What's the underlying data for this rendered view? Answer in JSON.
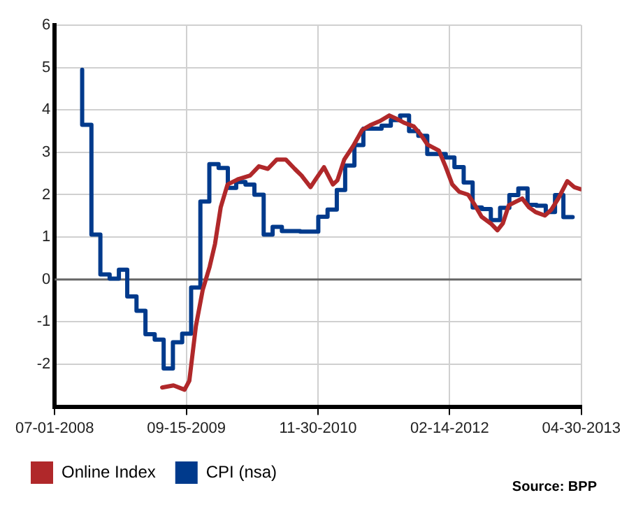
{
  "chart_data": {
    "type": "line",
    "xlim": [
      "2008-07-01",
      "2013-04-30"
    ],
    "xticks": [
      {
        "value": "2008-07-01",
        "label": "07-01-2008"
      },
      {
        "value": "2009-09-15",
        "label": "09-15-2009"
      },
      {
        "value": "2010-11-30",
        "label": "11-30-2010"
      },
      {
        "value": "2012-02-14",
        "label": "02-14-2012"
      },
      {
        "value": "2013-04-30",
        "label": "04-30-2013"
      }
    ],
    "ylim": [
      -3,
      6
    ],
    "yticks": [
      -2,
      -1,
      0,
      1,
      2,
      3,
      4,
      5,
      6
    ],
    "grid": true,
    "legend": "bottom",
    "marker": "none",
    "line_style": "solid",
    "ref_lines": [
      {
        "axis": "y",
        "value": 0,
        "color": "#666666"
      }
    ],
    "annotations": [
      "Source: BPP"
    ],
    "series": [
      {
        "name": "Online Index",
        "color": "#b0282a",
        "x": [
          "2009-06-26",
          "2009-08-03",
          "2009-09-09",
          "2009-09-25",
          "2009-10-17",
          "2009-11-09",
          "2009-12-02",
          "2009-12-20",
          "2010-01-08",
          "2010-01-31",
          "2010-03-09",
          "2010-04-16",
          "2010-05-16",
          "2010-06-15",
          "2010-07-15",
          "2010-08-14",
          "2010-09-13",
          "2010-10-06",
          "2010-11-05",
          "2010-11-20",
          "2010-12-20",
          "2011-01-19",
          "2011-02-03",
          "2011-02-26",
          "2011-03-28",
          "2011-04-27",
          "2011-05-27",
          "2011-06-26",
          "2011-07-27",
          "2011-08-18",
          "2011-09-17",
          "2011-10-17",
          "2011-11-09",
          "2011-12-02",
          "2012-01-09",
          "2012-01-31",
          "2012-02-23",
          "2012-03-17",
          "2012-04-16",
          "2012-05-09",
          "2012-05-31",
          "2012-07-01",
          "2012-07-23",
          "2012-08-10",
          "2012-08-30",
          "2012-09-21",
          "2012-10-14",
          "2012-11-06",
          "2012-11-28",
          "2012-12-29",
          "2013-01-20",
          "2013-02-12",
          "2013-03-14",
          "2013-04-06",
          "2013-04-28"
        ],
        "values": [
          -2.55,
          -2.5,
          -2.6,
          -2.39,
          -1.1,
          -0.24,
          0.3,
          0.84,
          1.7,
          2.24,
          2.37,
          2.45,
          2.67,
          2.61,
          2.83,
          2.83,
          2.61,
          2.45,
          2.18,
          2.34,
          2.65,
          2.24,
          2.34,
          2.83,
          3.15,
          3.53,
          3.65,
          3.74,
          3.87,
          3.8,
          3.69,
          3.61,
          3.42,
          3.18,
          3.04,
          2.67,
          2.24,
          2.07,
          2.0,
          1.75,
          1.48,
          1.32,
          1.16,
          1.32,
          1.75,
          1.83,
          1.91,
          1.7,
          1.59,
          1.51,
          1.65,
          1.91,
          2.32,
          2.18,
          2.13
        ]
      },
      {
        "name": "CPI (nsa)",
        "color": "#003a8c",
        "type": "step",
        "x": [
          "2008-10-01",
          "2008-11-01",
          "2008-12-01",
          "2009-01-01",
          "2009-02-01",
          "2009-03-01",
          "2009-04-01",
          "2009-05-01",
          "2009-06-01",
          "2009-07-01",
          "2009-08-01",
          "2009-09-01",
          "2009-10-01",
          "2009-11-01",
          "2009-12-01",
          "2010-01-01",
          "2010-02-01",
          "2010-03-01",
          "2010-04-01",
          "2010-05-01",
          "2010-06-01",
          "2010-07-01",
          "2010-08-01",
          "2010-09-01",
          "2010-10-01",
          "2010-11-01",
          "2010-12-01",
          "2011-01-01",
          "2011-02-01",
          "2011-03-01",
          "2011-04-01",
          "2011-05-01",
          "2011-06-01",
          "2011-07-01",
          "2011-08-01",
          "2011-09-01",
          "2011-10-01",
          "2011-11-01",
          "2011-12-01",
          "2012-01-01",
          "2012-02-01",
          "2012-03-01",
          "2012-04-01",
          "2012-05-01",
          "2012-06-01",
          "2012-07-01",
          "2012-08-01",
          "2012-09-01",
          "2012-10-01",
          "2012-11-01",
          "2012-12-01",
          "2013-01-01",
          "2013-02-01",
          "2013-03-01",
          "2013-04-01"
        ],
        "values": [
          4.95,
          3.65,
          1.06,
          0.12,
          0.02,
          0.23,
          -0.4,
          -0.74,
          -1.29,
          -1.42,
          -2.1,
          -1.48,
          -1.28,
          -0.19,
          1.84,
          2.72,
          2.63,
          2.16,
          2.3,
          2.24,
          2.0,
          1.06,
          1.24,
          1.14,
          1.14,
          1.13,
          1.13,
          1.48,
          1.65,
          2.11,
          2.69,
          3.17,
          3.56,
          3.56,
          3.63,
          3.76,
          3.87,
          3.5,
          3.39,
          2.96,
          2.96,
          2.88,
          2.65,
          2.29,
          1.7,
          1.66,
          1.4,
          1.69,
          1.99,
          2.15,
          1.76,
          1.74,
          1.59,
          1.99,
          1.47
        ]
      }
    ]
  }
}
